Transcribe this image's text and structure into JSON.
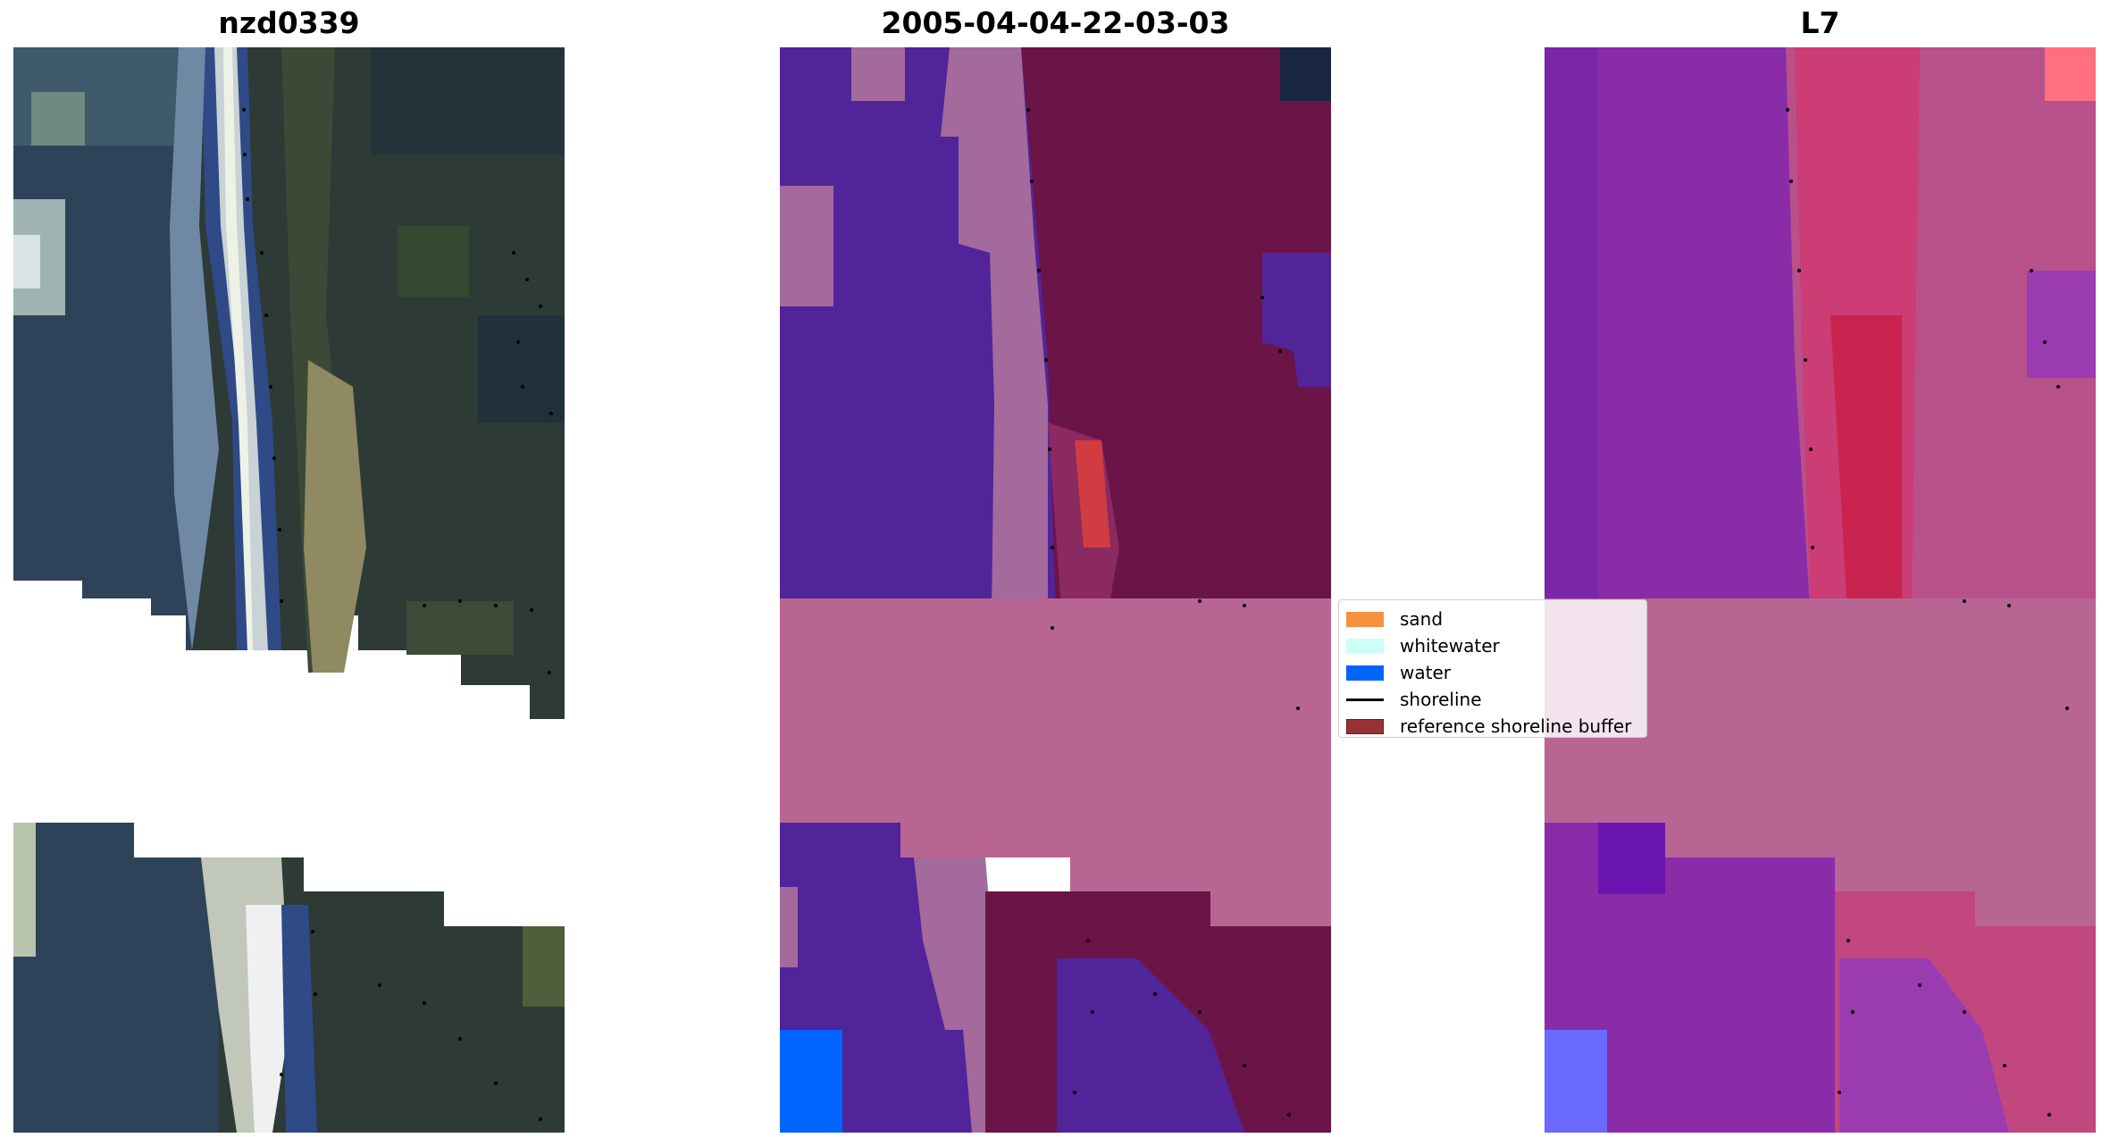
{
  "panels": [
    {
      "title": "nzd0339",
      "kind": "rgb"
    },
    {
      "title": "2005-04-04-22-03-03",
      "kind": "classified"
    },
    {
      "title": "L7",
      "kind": "index"
    }
  ],
  "legend": {
    "items": [
      {
        "label": "sand",
        "color": "#f7913f",
        "type": "patch"
      },
      {
        "label": "whitewater",
        "color": "#ccfff6",
        "type": "patch"
      },
      {
        "label": "water",
        "color": "#0064ff",
        "type": "patch"
      },
      {
        "label": "shoreline",
        "color": "#000000",
        "type": "line"
      },
      {
        "label": "reference shoreline buffer",
        "color": "#983333",
        "type": "patch"
      }
    ]
  },
  "colors": {
    "rgb_water": "#2e4359",
    "rgb_land": "#2d3a36",
    "rgb_surf": "#e6ecd8",
    "class_water_purple": "#52249a",
    "class_land_maroon": "#6a1447",
    "class_buffer_pink": "#b86594",
    "class_sand_red": "#c8384a",
    "class_water_blue": "#0064ff",
    "index_purple": "#8a2ca8",
    "index_red": "#d0396e",
    "index_buffer": "#b86594"
  }
}
